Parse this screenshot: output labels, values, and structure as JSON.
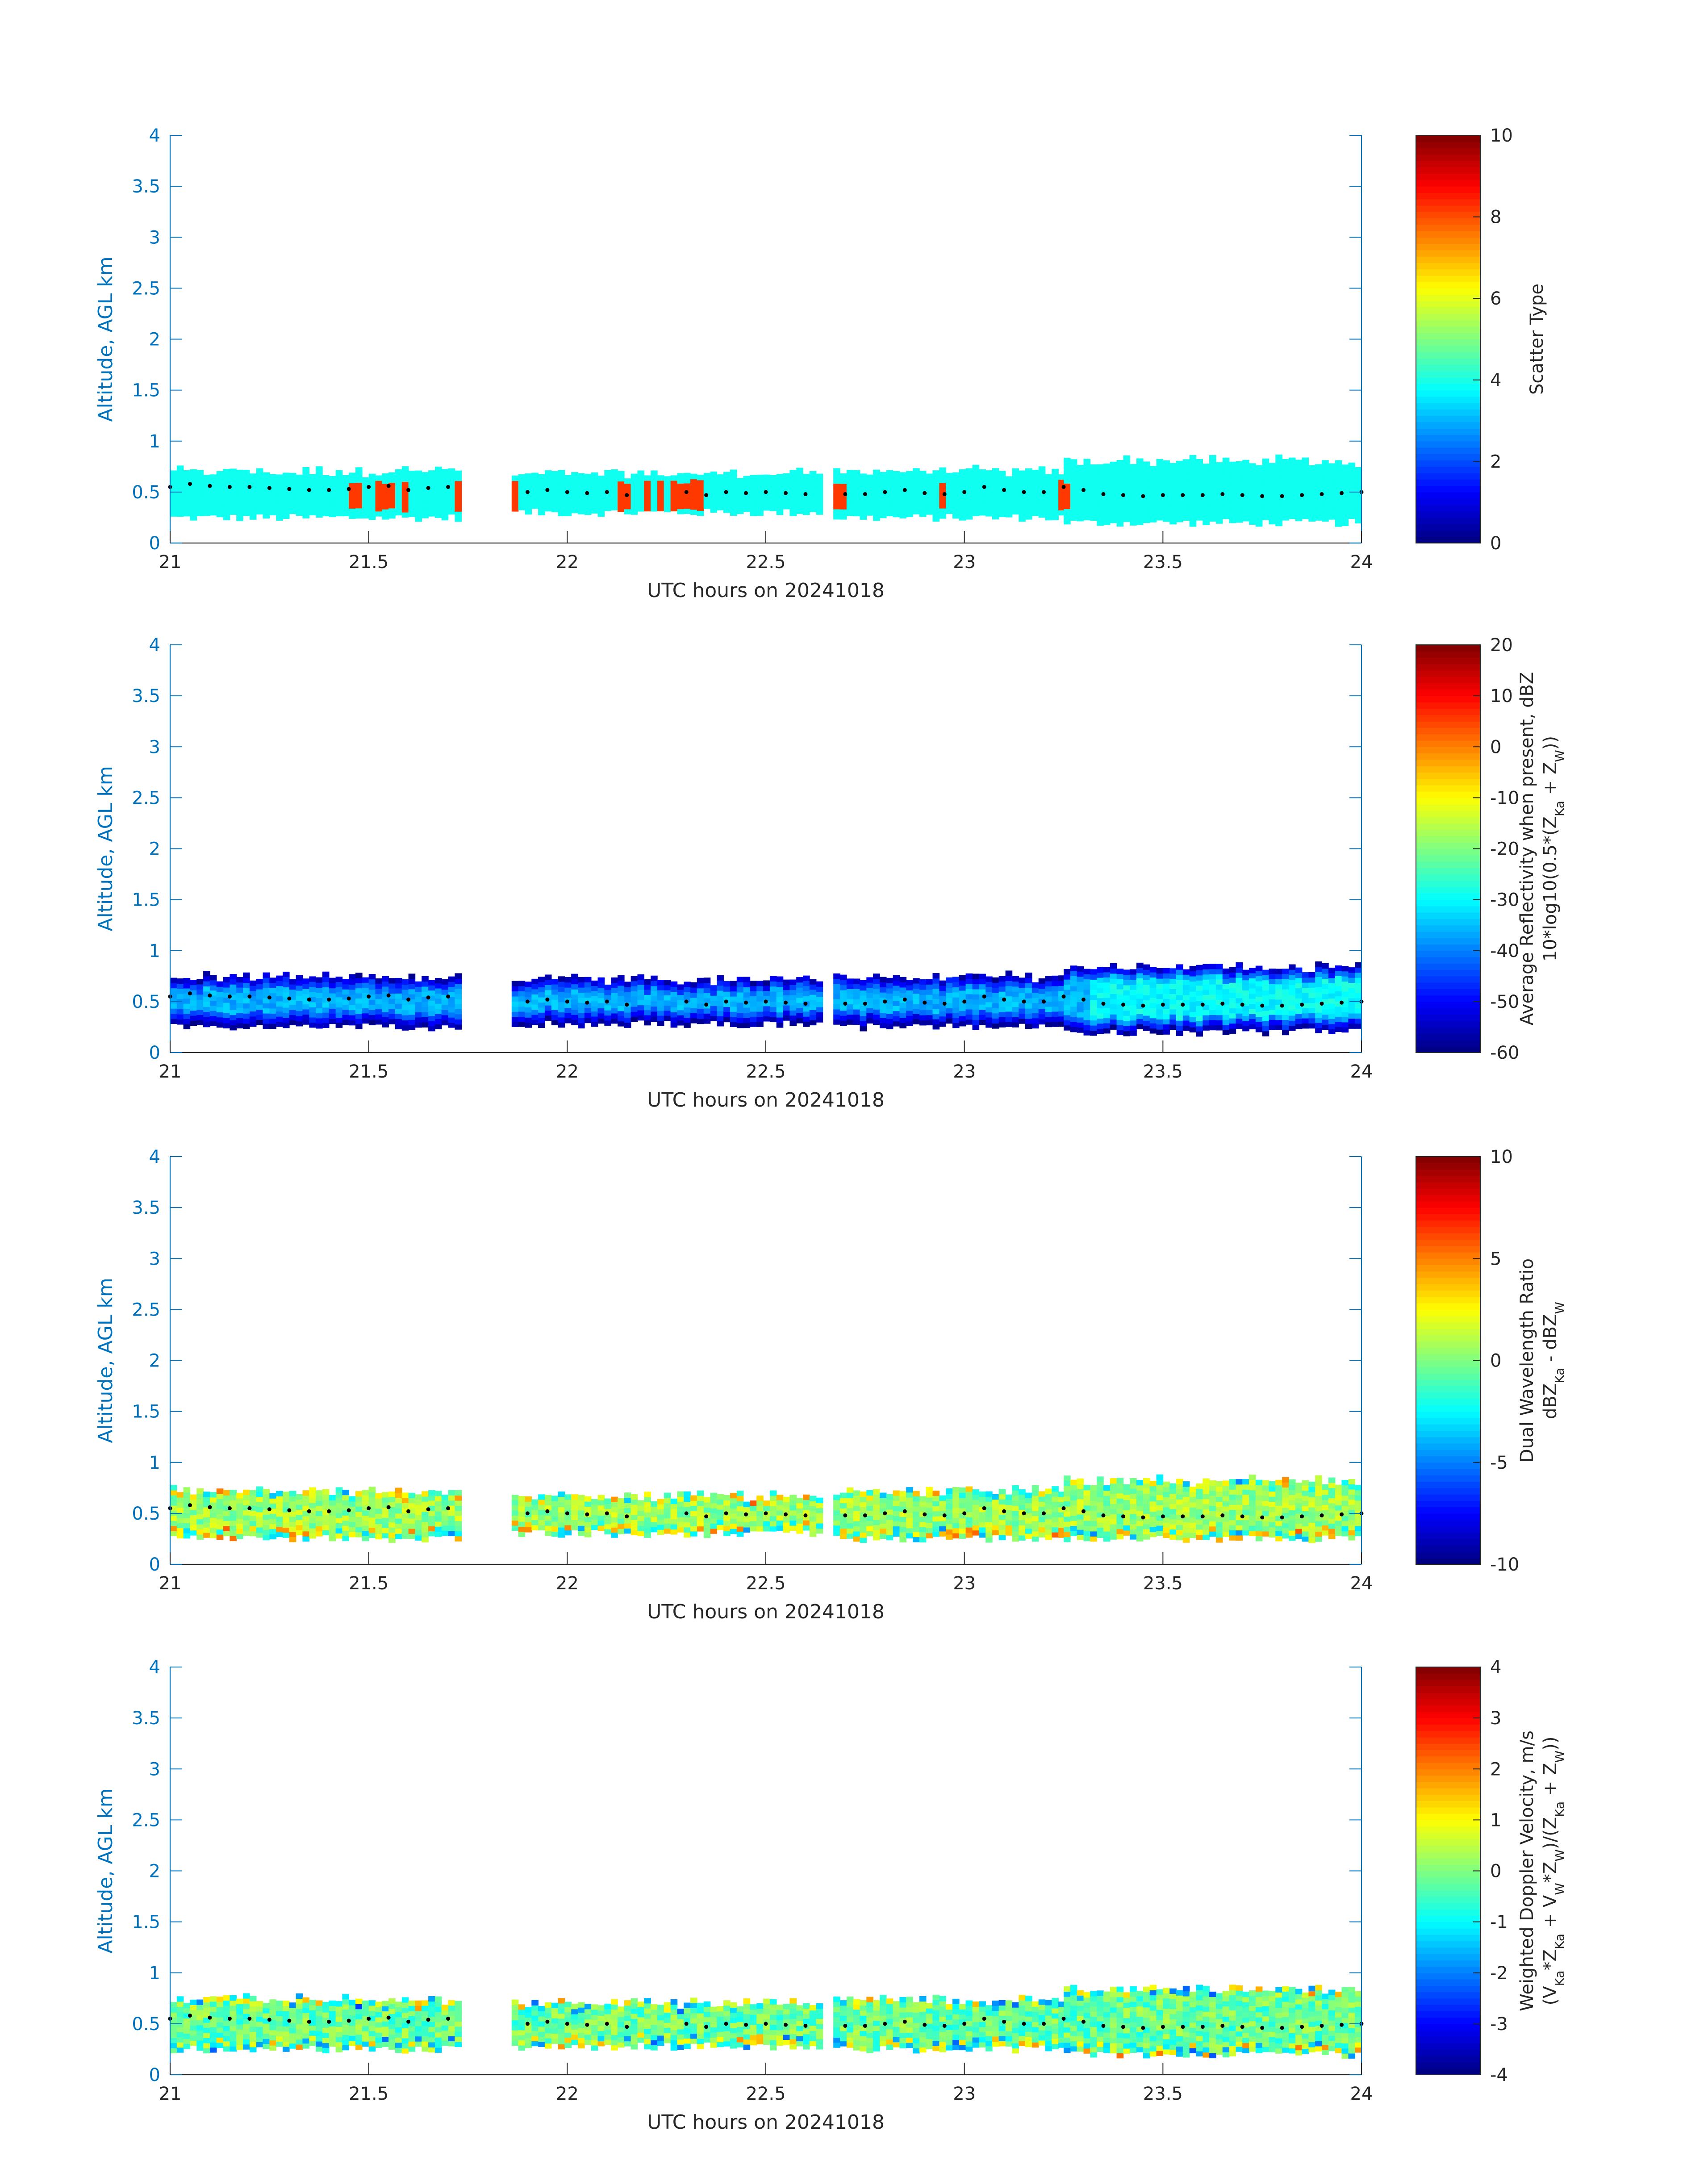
{
  "colors": {
    "axis": "#0072BD",
    "text": "#262626",
    "dots": "#000000",
    "background": "#ffffff"
  },
  "chart_data": [
    {
      "type": "heatmap",
      "xlabel": "UTC hours on 20241018",
      "ylabel": "Altitude, AGL km",
      "xlim": [
        21,
        24
      ],
      "ylim": [
        0,
        4
      ],
      "xticks": [
        "21",
        "21.5",
        "22",
        "22.5",
        "23",
        "23.5",
        "24"
      ],
      "yticks": [
        "0",
        "0.5",
        "1",
        "1.5",
        "2",
        "2.5",
        "3",
        "3.5",
        "4"
      ],
      "colorbar": {
        "label": [
          "Scatter Type"
        ],
        "range": [
          0,
          10
        ],
        "ticks": [
          "0",
          "2",
          "4",
          "6",
          "8",
          "10"
        ]
      },
      "field": "scatter_type",
      "dominant_value": 3.9,
      "secondary_value": 8.2,
      "cloud_mask": [
        {
          "x": [
            21.0,
            21.73
          ],
          "base": 0.25,
          "top": 0.68
        },
        {
          "x": [
            21.86,
            22.64
          ],
          "base": 0.3,
          "top": 0.65
        },
        {
          "x": [
            22.67,
            23.25
          ],
          "base": 0.25,
          "top": 0.68
        },
        {
          "x": [
            23.25,
            24.0
          ],
          "base": 0.2,
          "top": 0.78
        }
      ],
      "secondary_segments": [
        [
          21.44,
          21.47
        ],
        [
          21.51,
          21.56
        ],
        [
          21.57,
          21.59
        ],
        [
          21.71,
          21.73
        ],
        [
          21.85,
          21.87
        ],
        [
          22.11,
          22.15
        ],
        [
          22.18,
          22.2
        ],
        [
          22.22,
          22.24
        ],
        [
          22.25,
          22.33
        ],
        [
          22.67,
          22.69
        ],
        [
          22.93,
          22.95
        ],
        [
          23.23,
          23.25
        ]
      ]
    },
    {
      "type": "heatmap",
      "xlabel": "UTC hours on 20241018",
      "ylabel": "Altitude, AGL km",
      "xlim": [
        21,
        24
      ],
      "ylim": [
        0,
        4
      ],
      "xticks": [
        "21",
        "21.5",
        "22",
        "22.5",
        "23",
        "23.5",
        "24"
      ],
      "yticks": [
        "0",
        "0.5",
        "1",
        "1.5",
        "2",
        "2.5",
        "3",
        "3.5",
        "4"
      ],
      "colorbar": {
        "label": [
          "Average Reflectivity when present, dBZ",
          "10*log10(0.5*(Z",
          "Ka",
          " + Z",
          "W",
          "))"
        ],
        "range": [
          -60,
          20
        ],
        "ticks": [
          "-60",
          "-50",
          "-40",
          "-30",
          "-20",
          "-10",
          "0",
          "10",
          "20"
        ]
      },
      "field": "reflectivity",
      "core_value": -36,
      "edge_value": -57,
      "cloud_mask": [
        {
          "x": [
            21.0,
            21.73
          ],
          "base": 0.25,
          "top": 0.72
        },
        {
          "x": [
            21.86,
            22.64
          ],
          "base": 0.28,
          "top": 0.7
        },
        {
          "x": [
            22.67,
            23.25
          ],
          "base": 0.25,
          "top": 0.72
        },
        {
          "x": [
            23.25,
            24.0
          ],
          "base": 0.2,
          "top": 0.82
        }
      ]
    },
    {
      "type": "heatmap",
      "xlabel": "UTC hours on 20241018",
      "ylabel": "Altitude, AGL km",
      "xlim": [
        21,
        24
      ],
      "ylim": [
        0,
        4
      ],
      "xticks": [
        "21",
        "21.5",
        "22",
        "22.5",
        "23",
        "23.5",
        "24"
      ],
      "yticks": [
        "0",
        "0.5",
        "1",
        "1.5",
        "2",
        "2.5",
        "3",
        "3.5",
        "4"
      ],
      "colorbar": {
        "label": [
          "Dual Wavelength Ratio",
          "dBZ",
          "Ka",
          " - dBZ",
          "W"
        ],
        "range": [
          -10,
          10
        ],
        "ticks": [
          "-10",
          "-5",
          "0",
          "5",
          "10"
        ]
      },
      "field": "dual_wavelength_ratio",
      "core_value": 0.5,
      "cloud_mask": [
        {
          "x": [
            21.0,
            21.73
          ],
          "base": 0.25,
          "top": 0.7
        },
        {
          "x": [
            21.86,
            22.64
          ],
          "base": 0.3,
          "top": 0.65
        },
        {
          "x": [
            22.67,
            23.25
          ],
          "base": 0.25,
          "top": 0.7
        },
        {
          "x": [
            23.25,
            24.0
          ],
          "base": 0.25,
          "top": 0.8
        }
      ]
    },
    {
      "type": "heatmap",
      "xlabel": "UTC hours on 20241018",
      "ylabel": "Altitude, AGL km",
      "xlim": [
        21,
        24
      ],
      "ylim": [
        0,
        4
      ],
      "xticks": [
        "21",
        "21.5",
        "22",
        "22.5",
        "23",
        "23.5",
        "24"
      ],
      "yticks": [
        "0",
        "0.5",
        "1",
        "1.5",
        "2",
        "2.5",
        "3",
        "3.5",
        "4"
      ],
      "colorbar": {
        "label": [
          "Weighted Doppler Velocity, m/s",
          "(V",
          "Ka",
          "*Z",
          "Ka",
          " + V",
          "W",
          "*Z",
          "W",
          ")/(Z",
          "Ka",
          " + Z",
          "W",
          "))"
        ],
        "range": [
          -4,
          4
        ],
        "ticks": [
          "-4",
          "-3",
          "-2",
          "-1",
          "0",
          "1",
          "2",
          "3",
          "4"
        ]
      },
      "field": "doppler_velocity",
      "core_value": -0.2,
      "cloud_mask": [
        {
          "x": [
            21.0,
            21.73
          ],
          "base": 0.25,
          "top": 0.72
        },
        {
          "x": [
            21.86,
            22.64
          ],
          "base": 0.28,
          "top": 0.68
        },
        {
          "x": [
            22.67,
            23.25
          ],
          "base": 0.25,
          "top": 0.72
        },
        {
          "x": [
            23.25,
            24.0
          ],
          "base": 0.2,
          "top": 0.82
        }
      ]
    }
  ],
  "overlay_points": {
    "x": [
      21.0,
      21.05,
      21.1,
      21.15,
      21.2,
      21.25,
      21.3,
      21.35,
      21.4,
      21.45,
      21.5,
      21.55,
      21.6,
      21.65,
      21.7,
      21.9,
      21.95,
      22.0,
      22.05,
      22.1,
      22.15,
      22.3,
      22.35,
      22.4,
      22.45,
      22.5,
      22.55,
      22.6,
      22.7,
      22.75,
      22.8,
      22.85,
      22.9,
      22.95,
      23.0,
      23.05,
      23.1,
      23.15,
      23.2,
      23.25,
      23.3,
      23.35,
      23.4,
      23.45,
      23.5,
      23.55,
      23.6,
      23.65,
      23.7,
      23.75,
      23.8,
      23.85,
      23.9,
      23.95,
      24.0
    ],
    "y": [
      0.55,
      0.58,
      0.56,
      0.55,
      0.55,
      0.54,
      0.53,
      0.52,
      0.52,
      0.53,
      0.55,
      0.56,
      0.52,
      0.54,
      0.55,
      0.5,
      0.52,
      0.5,
      0.49,
      0.5,
      0.47,
      0.5,
      0.47,
      0.5,
      0.49,
      0.5,
      0.49,
      0.48,
      0.48,
      0.48,
      0.5,
      0.52,
      0.49,
      0.48,
      0.5,
      0.55,
      0.52,
      0.5,
      0.5,
      0.55,
      0.52,
      0.48,
      0.47,
      0.46,
      0.47,
      0.47,
      0.47,
      0.48,
      0.47,
      0.46,
      0.46,
      0.47,
      0.48,
      0.49,
      0.5
    ]
  }
}
